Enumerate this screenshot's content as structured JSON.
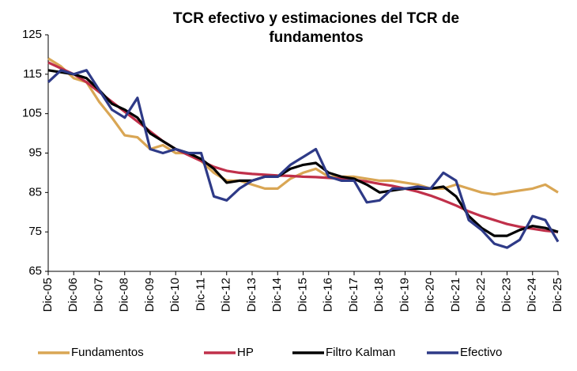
{
  "chart_data": {
    "type": "line",
    "title": "TCR efectivo y estimaciones del TCR de fundamentos",
    "categories": [
      "Dic-05",
      null,
      "Dic-06",
      null,
      "Dic-07",
      null,
      "Dic-08",
      null,
      "Dic-09",
      null,
      "Dic-10",
      null,
      "Dic-11",
      null,
      "Dic-12",
      null,
      "Dic-13",
      null,
      "Dic-14",
      null,
      "Dic-15",
      null,
      "Dic-16",
      null,
      "Dic-17",
      null,
      "Dic-18",
      null,
      "Dic-19",
      null,
      "Dic-20",
      null,
      "Dic-21",
      null,
      "Dic-22",
      null,
      "Dic-23",
      null,
      "Dic-24",
      null,
      "Dic-25"
    ],
    "series": [
      {
        "name": "Fundamentos",
        "color": "#d9a654",
        "values": [
          119,
          117,
          114,
          113,
          108,
          104,
          99.5,
          99,
          96,
          97,
          95,
          95,
          93,
          90,
          88,
          88,
          87,
          86,
          86,
          88.5,
          90,
          91,
          89,
          89,
          89,
          88.5,
          88,
          88,
          87.5,
          87,
          86,
          86,
          87,
          86,
          85,
          84.5,
          85,
          85.5,
          86,
          87,
          85
        ]
      },
      {
        "name": "HP",
        "color": "#c0304a",
        "values": [
          118,
          116.5,
          115,
          113,
          110.5,
          108,
          105.5,
          103,
          100.5,
          98,
          96,
          94.5,
          93,
          91.5,
          90.5,
          90,
          89.7,
          89.5,
          89.3,
          89.2,
          89,
          88.9,
          88.7,
          88.5,
          88.2,
          87.8,
          87.2,
          86.7,
          86,
          85.2,
          84.2,
          83,
          81.7,
          80.2,
          79,
          78,
          77,
          76.3,
          75.8,
          75.3,
          75
        ]
      },
      {
        "name": "Filtro Kalman",
        "color": "#000000",
        "values": [
          116,
          115.5,
          115,
          114,
          111,
          107.5,
          106,
          104,
          100,
          98,
          96,
          95,
          93.5,
          91,
          87.5,
          88,
          88,
          89,
          89,
          91,
          92,
          92.5,
          90,
          89,
          88.5,
          87,
          85,
          85.5,
          86,
          86,
          86,
          86.5,
          84,
          79,
          76,
          74,
          74,
          75.5,
          76.5,
          76,
          75
        ]
      },
      {
        "name": "Efectivo",
        "color": "#2e3a87",
        "values": [
          113,
          116,
          115,
          116,
          111,
          106,
          104,
          109,
          96,
          95,
          96,
          95,
          95,
          84,
          83,
          86,
          88,
          89,
          89,
          92,
          94,
          96,
          89,
          88,
          88,
          82.5,
          83,
          86,
          86,
          86.5,
          86,
          90,
          88,
          78,
          75.5,
          72,
          71,
          73,
          79,
          78,
          72.5
        ]
      }
    ],
    "ylim": [
      65,
      125
    ],
    "yticks": [
      65,
      75,
      85,
      95,
      105,
      115,
      125
    ]
  }
}
